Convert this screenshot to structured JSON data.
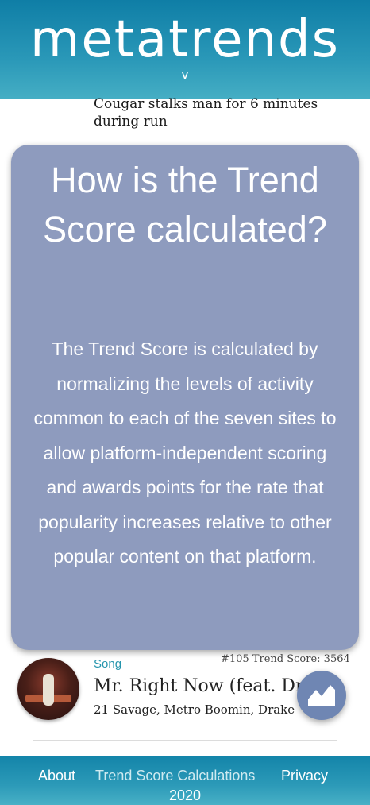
{
  "header": {
    "logo_text": "metatrends",
    "chevron": "v"
  },
  "feed": {
    "headline": "Cougar stalks man for 6 minutes during run"
  },
  "modal": {
    "title": "How is the Trend Score calculated?",
    "body": "The Trend Score is calculated by normalizing the levels of activity common to each of the seven sites to allow platform-independent scoring and awards points for the rate that popularity increases relative to other popular content on that platform."
  },
  "song_item": {
    "type_label": "Song",
    "rank_text": "#105 Trend Score: 3564",
    "title": "Mr. Right Now (feat. Drake)",
    "artists": "21 Savage, Metro Boomin, Drake",
    "fab_icon": "trend-chart-icon"
  },
  "footer": {
    "links": [
      "About",
      "Trend Score Calculations",
      "Privacy"
    ],
    "year": "2020"
  },
  "colors": {
    "header_bg": "#1b8db0",
    "modal_bg": "#8e9bbe",
    "accent": "#2595ad",
    "fab_bg": "#6f86b3"
  }
}
